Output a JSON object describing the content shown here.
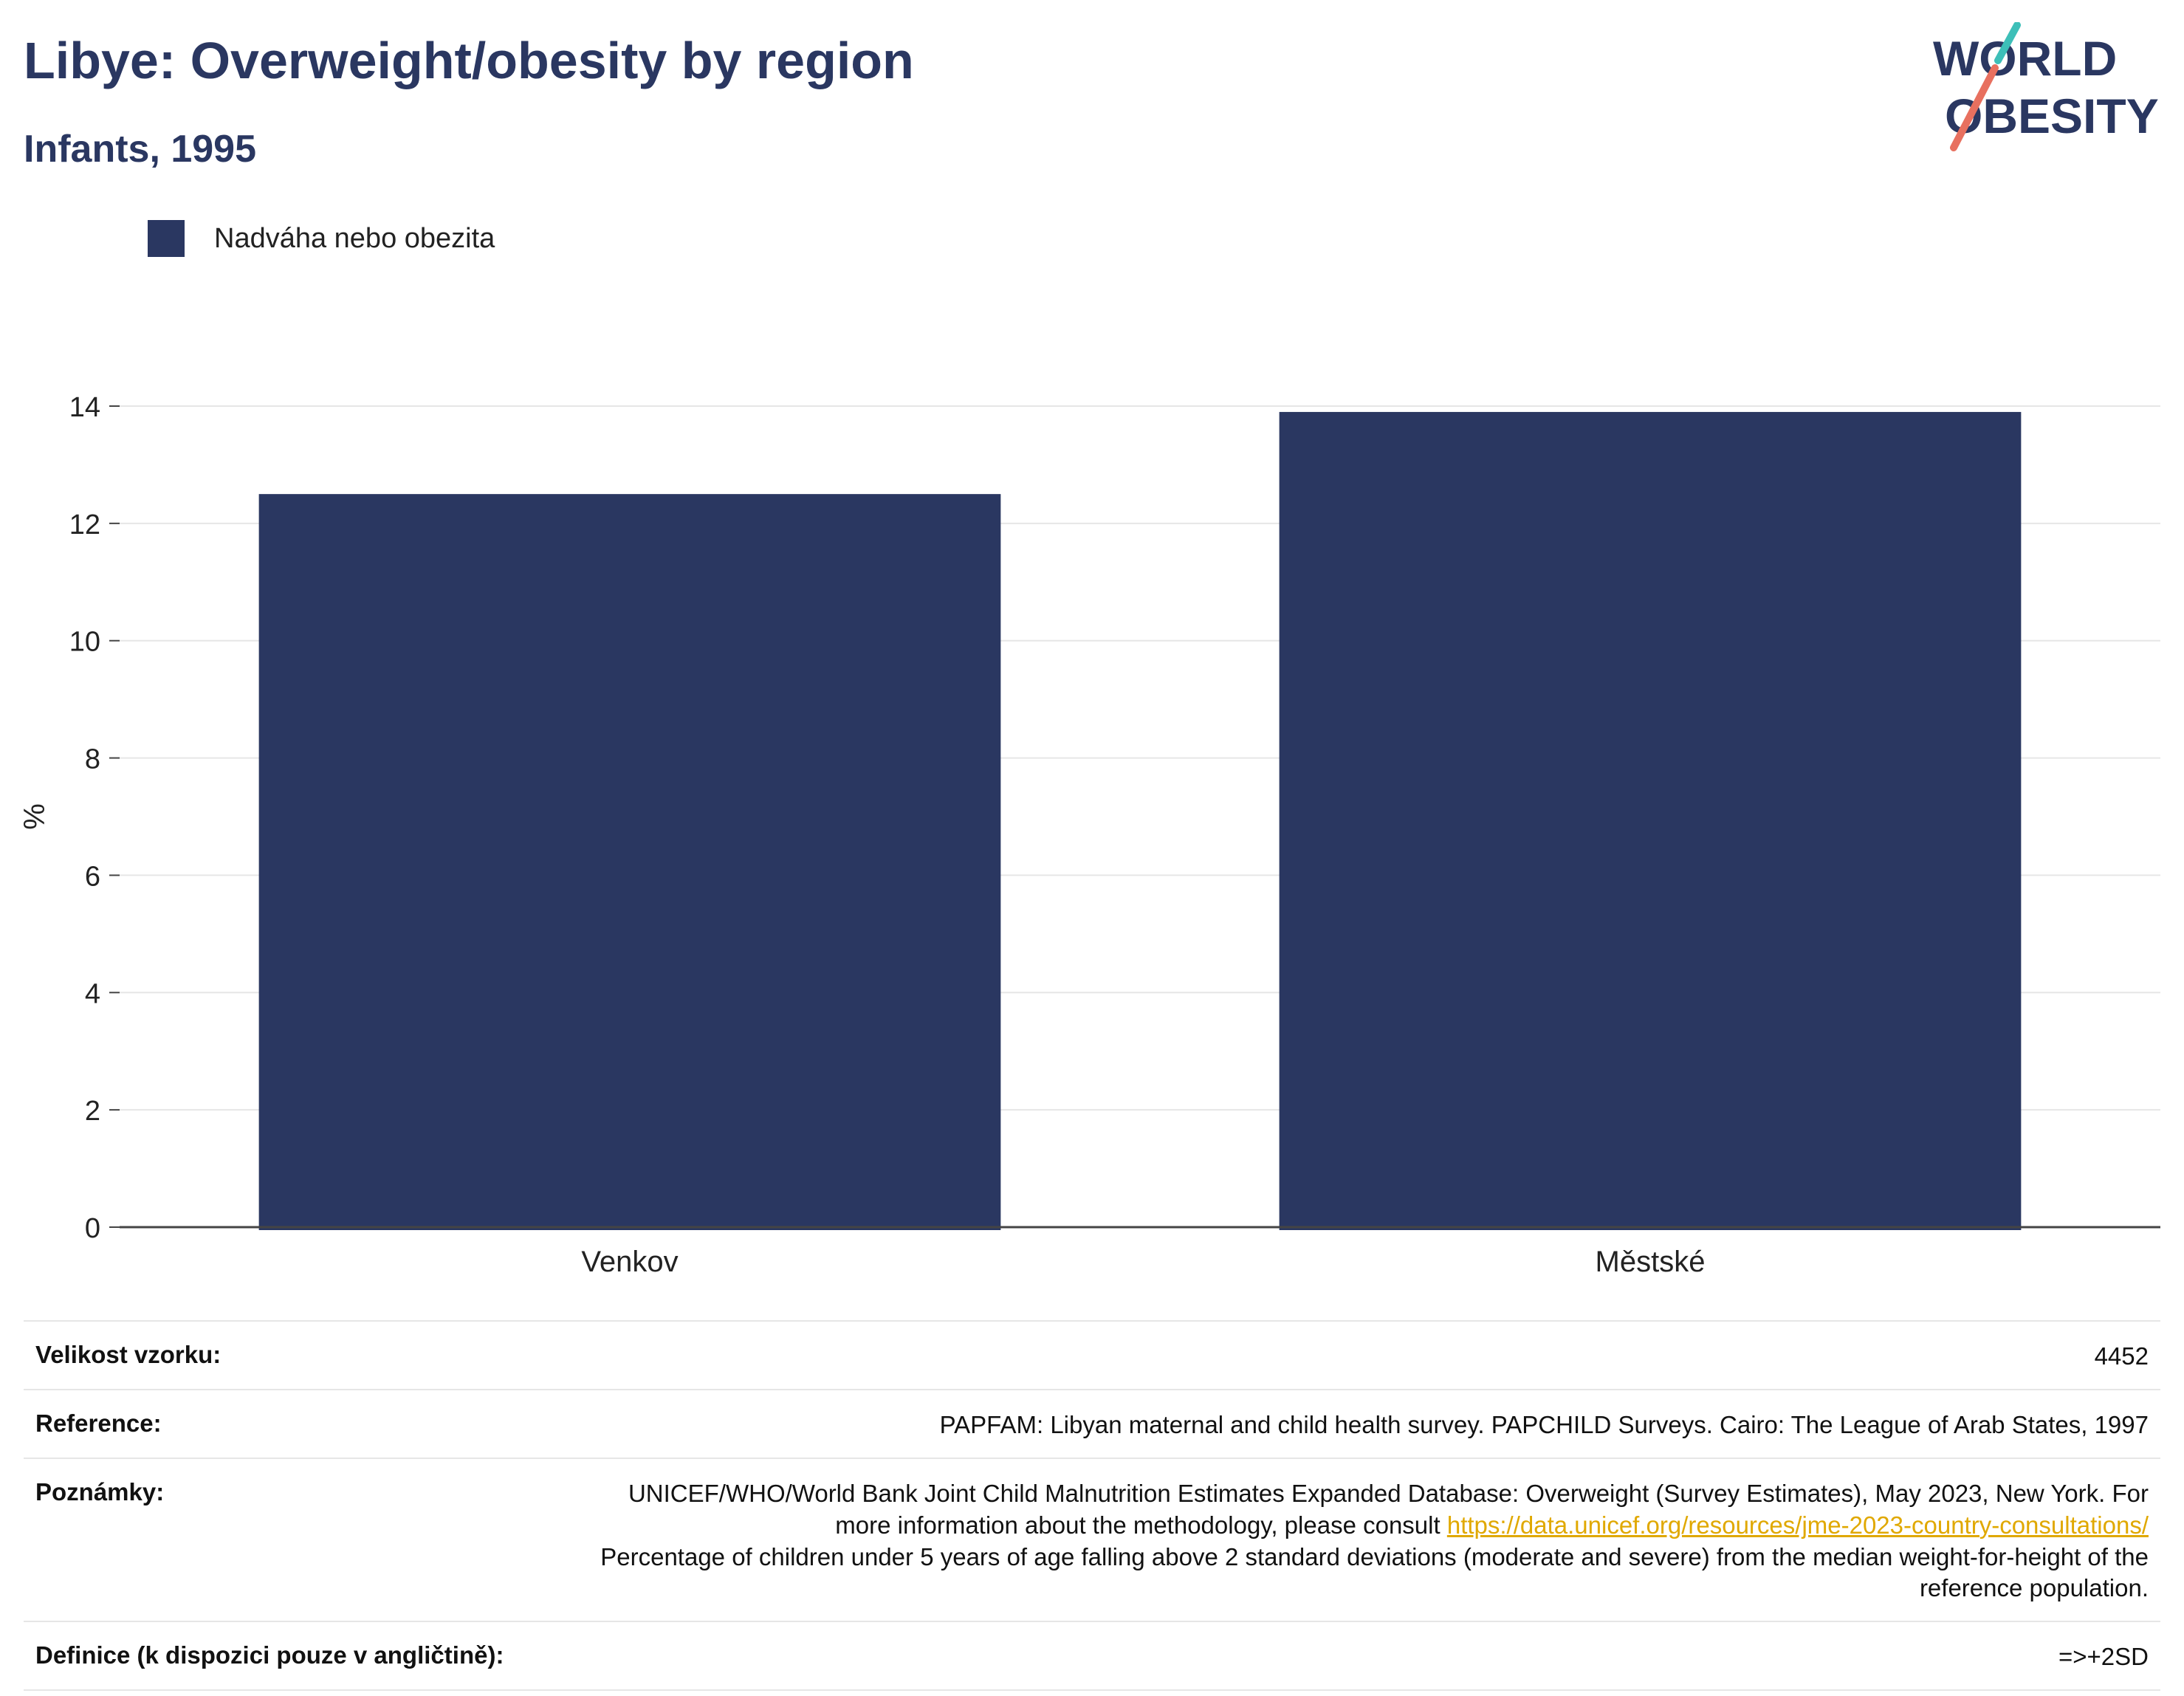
{
  "header": {
    "title": "Libye: Overweight/obesity by region",
    "subtitle": "Infants, 1995"
  },
  "logo": {
    "line1": "WORLD",
    "line2": "OBESITY",
    "accent_teal": "#3dbfb8",
    "accent_coral": "#e8705f"
  },
  "legend": {
    "label": "Nadváha nebo obezita",
    "color": "#2a3761"
  },
  "chart_data": {
    "type": "bar",
    "categories": [
      "Venkov",
      "Městské"
    ],
    "series": [
      {
        "name": "Nadváha nebo obezita",
        "values": [
          12.5,
          13.9
        ],
        "color": "#2a3761"
      }
    ],
    "ylabel": "%",
    "ylim": [
      0,
      14
    ],
    "yticks": [
      0,
      2,
      4,
      6,
      8,
      10,
      12,
      14
    ],
    "grid": true,
    "legend_position": "top-left"
  },
  "meta": {
    "sample_label": "Velikost vzorku:",
    "sample_value": "4452",
    "reference_label": "Reference:",
    "reference_value": "PAPFAM: Libyan maternal and child health survey. PAPCHILD Surveys. Cairo: The League of Arab States, 1997",
    "notes_label": "Poznámky:",
    "notes_text1": "UNICEF/WHO/World Bank Joint Child Malnutrition Estimates Expanded Database: Overweight (Survey Estimates), May 2023, New York. For more information about the methodology, please consult",
    "notes_link": "https://data.unicef.org/resources/jme-2023-country-consultations/",
    "notes_text2": "Percentage of children under 5 years of age falling above 2 standard deviations (moderate and severe) from the median weight-for-height of the reference population.",
    "definition_label": "Definice (k dispozici pouze v angličtině):",
    "definition_value": "=>+2SD"
  }
}
